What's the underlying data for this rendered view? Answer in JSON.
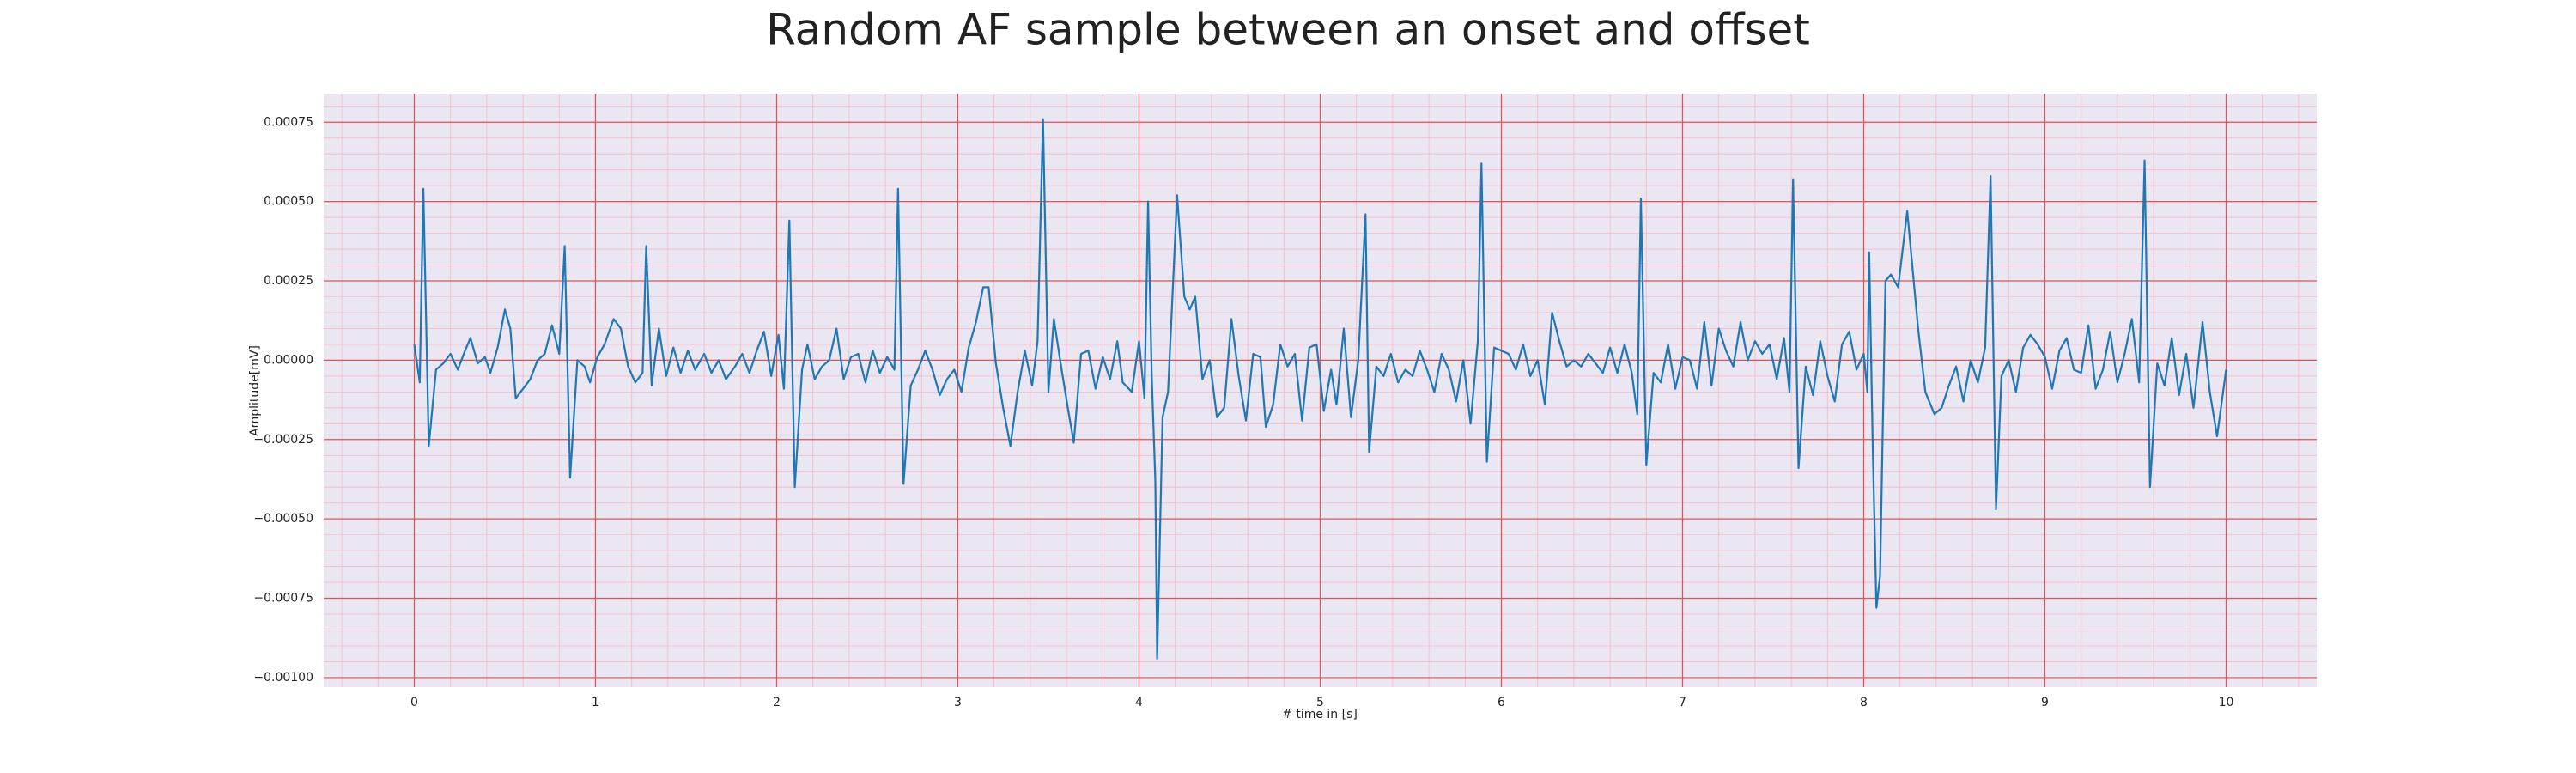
{
  "chart_data": {
    "type": "line",
    "title": "Random AF sample between an onset and offset",
    "xlabel": "# time in [s]",
    "ylabel": "Amplitude[mV]",
    "color": "#1f77b4",
    "grid": true,
    "minor_grid": true,
    "xlim": [
      -0.5,
      10.5
    ],
    "xticks": [
      0,
      1,
      2,
      3,
      4,
      5,
      6,
      7,
      8,
      9,
      10
    ],
    "ylim": [
      -0.00103,
      0.00084
    ],
    "yticks": [
      {
        "value": 0.00075,
        "label": "0.00075"
      },
      {
        "value": 0.0005,
        "label": "0.00050"
      },
      {
        "value": 0.00025,
        "label": "0.00025"
      },
      {
        "value": 0,
        "label": "0.00000"
      },
      {
        "value": -0.00025,
        "label": "−0.00025"
      },
      {
        "value": -0.0005,
        "label": "−0.00050"
      },
      {
        "value": -0.00075,
        "label": "−0.00075"
      },
      {
        "value": -0.001,
        "label": "−0.00100"
      }
    ],
    "x": [
      0.0,
      0.03,
      0.05,
      0.08,
      0.12,
      0.16,
      0.2,
      0.24,
      0.28,
      0.31,
      0.35,
      0.39,
      0.42,
      0.46,
      0.5,
      0.53,
      0.56,
      0.6,
      0.64,
      0.68,
      0.72,
      0.76,
      0.8,
      0.83,
      0.86,
      0.9,
      0.94,
      0.97,
      1.01,
      1.05,
      1.1,
      1.14,
      1.18,
      1.22,
      1.26,
      1.28,
      1.31,
      1.35,
      1.39,
      1.43,
      1.47,
      1.51,
      1.55,
      1.6,
      1.64,
      1.68,
      1.72,
      1.77,
      1.81,
      1.85,
      1.89,
      1.93,
      1.97,
      2.01,
      2.04,
      2.07,
      2.1,
      2.14,
      2.17,
      2.21,
      2.25,
      2.29,
      2.33,
      2.37,
      2.41,
      2.45,
      2.49,
      2.53,
      2.57,
      2.61,
      2.65,
      2.67,
      2.7,
      2.74,
      2.78,
      2.82,
      2.86,
      2.9,
      2.94,
      2.98,
      3.02,
      3.06,
      3.1,
      3.14,
      3.17,
      3.21,
      3.25,
      3.29,
      3.33,
      3.37,
      3.41,
      3.44,
      3.47,
      3.5,
      3.53,
      3.57,
      3.61,
      3.64,
      3.68,
      3.72,
      3.76,
      3.8,
      3.84,
      3.88,
      3.91,
      3.96,
      4.0,
      4.03,
      4.05,
      4.07,
      4.09,
      4.1,
      4.13,
      4.16,
      4.19,
      4.21,
      4.25,
      4.28,
      4.31,
      4.35,
      4.39,
      4.43,
      4.47,
      4.51,
      4.55,
      4.59,
      4.63,
      4.67,
      4.7,
      4.74,
      4.78,
      4.82,
      4.86,
      4.9,
      4.94,
      4.98,
      5.02,
      5.06,
      5.09,
      5.13,
      5.17,
      5.21,
      5.25,
      5.27,
      5.31,
      5.35,
      5.39,
      5.43,
      5.47,
      5.51,
      5.55,
      5.59,
      5.63,
      5.67,
      5.71,
      5.75,
      5.79,
      5.83,
      5.87,
      5.89,
      5.92,
      5.96,
      6.0,
      6.04,
      6.08,
      6.12,
      6.16,
      6.2,
      6.24,
      6.28,
      6.32,
      6.36,
      6.4,
      6.44,
      6.48,
      6.52,
      6.56,
      6.6,
      6.64,
      6.68,
      6.72,
      6.75,
      6.77,
      6.8,
      6.84,
      6.88,
      6.92,
      6.96,
      7.0,
      7.04,
      7.08,
      7.12,
      7.16,
      7.2,
      7.24,
      7.28,
      7.32,
      7.36,
      7.4,
      7.44,
      7.48,
      7.52,
      7.56,
      7.59,
      7.61,
      7.64,
      7.68,
      7.72,
      7.76,
      7.8,
      7.84,
      7.88,
      7.92,
      7.96,
      8.0,
      8.02,
      8.03,
      8.05,
      8.07,
      8.09,
      8.12,
      8.15,
      8.19,
      8.24,
      8.3,
      8.34,
      8.39,
      8.43,
      8.47,
      8.51,
      8.55,
      8.59,
      8.63,
      8.67,
      8.7,
      8.73,
      8.76,
      8.8,
      8.84,
      8.88,
      8.92,
      8.96,
      9.0,
      9.04,
      9.08,
      9.12,
      9.16,
      9.2,
      9.24,
      9.28,
      9.32,
      9.36,
      9.4,
      9.44,
      9.48,
      9.52,
      9.55,
      9.58,
      9.62,
      9.66,
      9.7,
      9.74,
      9.78,
      9.82,
      9.87,
      9.91,
      9.95,
      10.0
    ],
    "values": [
      5e-05,
      -7e-05,
      0.00054,
      -0.00027,
      -3e-05,
      -1e-05,
      2e-05,
      -3e-05,
      3e-05,
      7e-05,
      -1e-05,
      1e-05,
      -4e-05,
      4e-05,
      0.00016,
      0.0001,
      -0.00012,
      -9e-05,
      -6e-05,
      0,
      2e-05,
      0.00011,
      2e-05,
      0.00036,
      -0.00037,
      0,
      -2e-05,
      -7e-05,
      1e-05,
      5e-05,
      0.00013,
      0.0001,
      -2e-05,
      -7e-05,
      -4e-05,
      0.00036,
      -8e-05,
      0.0001,
      -5e-05,
      4e-05,
      -4e-05,
      3e-05,
      -3e-05,
      2e-05,
      -4e-05,
      0,
      -6e-05,
      -2e-05,
      2e-05,
      -4e-05,
      3e-05,
      9e-05,
      -5e-05,
      8e-05,
      -9e-05,
      0.00044,
      -0.0004,
      -3e-05,
      5e-05,
      -6e-05,
      -2e-05,
      0,
      0.0001,
      -6e-05,
      1e-05,
      2e-05,
      -7e-05,
      3e-05,
      -4e-05,
      1e-05,
      -3e-05,
      0.00054,
      -0.00039,
      -8e-05,
      -3e-05,
      3e-05,
      -3e-05,
      -0.00011,
      -6e-05,
      -3e-05,
      -0.0001,
      4e-05,
      0.00012,
      0.00023,
      0.00023,
      -1e-05,
      -0.00015,
      -0.00027,
      -0.0001,
      3e-05,
      -8e-05,
      6e-05,
      0.00076,
      -0.0001,
      0.00013,
      -2e-05,
      -0.00016,
      -0.00026,
      2e-05,
      3e-05,
      -9e-05,
      1e-05,
      -6e-05,
      6e-05,
      -7e-05,
      -0.0001,
      6e-05,
      -0.00012,
      0.0005,
      -5e-05,
      -0.00038,
      -0.00094,
      -0.00018,
      -0.0001,
      0.00027,
      0.00052,
      0.0002,
      0.00016,
      0.0002,
      -6e-05,
      0,
      -0.00018,
      -0.00015,
      0.00013,
      -5e-05,
      -0.00019,
      2e-05,
      1e-05,
      -0.00021,
      -0.00014,
      5e-05,
      -2e-05,
      2e-05,
      -0.00019,
      4e-05,
      5e-05,
      -0.00016,
      -3e-05,
      -0.00014,
      0.0001,
      -0.00018,
      0,
      0.00046,
      -0.00029,
      -2e-05,
      -5e-05,
      2e-05,
      -7e-05,
      -3e-05,
      -5e-05,
      3e-05,
      -3e-05,
      -0.0001,
      2e-05,
      -3e-05,
      -0.00013,
      0,
      -0.0002,
      6e-05,
      0.00062,
      -0.00032,
      4e-05,
      3e-05,
      2e-05,
      -3e-05,
      5e-05,
      -5e-05,
      0,
      -0.00014,
      0.00015,
      6e-05,
      -2e-05,
      0,
      -2e-05,
      2e-05,
      -1e-05,
      -4e-05,
      4e-05,
      -4e-05,
      5e-05,
      -4e-05,
      -0.00017,
      0.00051,
      -0.00033,
      -4e-05,
      -7e-05,
      5e-05,
      -9e-05,
      1e-05,
      0,
      -9e-05,
      0.00012,
      -8e-05,
      0.0001,
      3e-05,
      -2e-05,
      0.00012,
      0,
      6e-05,
      2e-05,
      5e-05,
      -6e-05,
      7e-05,
      -0.0001,
      0.00057,
      -0.00034,
      -2e-05,
      -0.00011,
      6e-05,
      -5e-05,
      -0.00013,
      5e-05,
      9e-05,
      -3e-05,
      2e-05,
      -0.0001,
      0.00034,
      -0.00028,
      -0.00078,
      -0.00068,
      0.00025,
      0.00027,
      0.00023,
      0.00047,
      0.0001,
      -0.0001,
      -0.00017,
      -0.00015,
      -8e-05,
      -2e-05,
      -0.00013,
      0,
      -7e-05,
      4e-05,
      0.00058,
      -0.00047,
      -5e-05,
      0,
      -0.0001,
      4e-05,
      8e-05,
      5e-05,
      1e-05,
      -9e-05,
      3e-05,
      7e-05,
      -3e-05,
      -4e-05,
      0.00011,
      -9e-05,
      -3e-05,
      9e-05,
      -7e-05,
      2e-05,
      0.00013,
      -7e-05,
      0.00063,
      -0.0004,
      -1e-05,
      -8e-05,
      7e-05,
      -0.00011,
      2e-05,
      -0.00015,
      0.00012,
      -0.0001,
      -0.00024,
      -3e-05
    ]
  }
}
